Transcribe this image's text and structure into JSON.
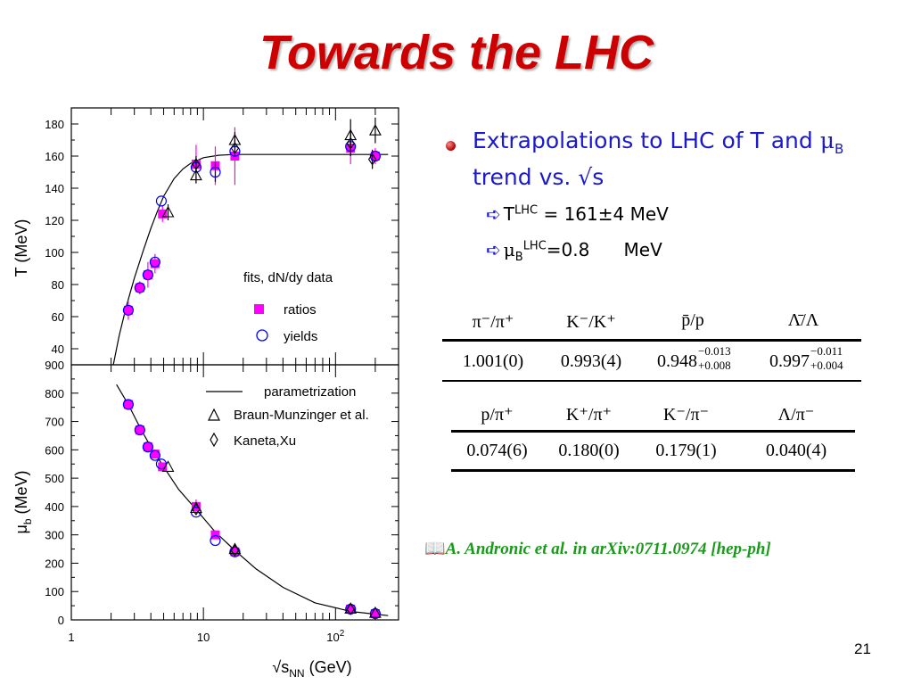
{
  "slide": {
    "title": "Towards the LHC",
    "page_number": "21",
    "bullet": {
      "text_parts": [
        "Extrapolations to LHC of T and ",
        "μ",
        "B",
        " trend vs. √s"
      ],
      "sub1": {
        "prefix": "T",
        "sup": "LHC",
        "value": " = 161±4 MeV"
      },
      "sub2": {
        "prefix": "μ",
        "sub": "B",
        "sup": "LHC",
        "value": "=0.8      MeV"
      }
    },
    "citation": "A. Andronic et al. in arXiv:0711.0974 [hep-ph]",
    "table1": {
      "headers": [
        "π⁻/π⁺",
        "K⁻/K⁺",
        "p̄/p",
        "Λ̄/Λ"
      ],
      "values": [
        "1.001(0)",
        "0.993(4)",
        "0.948",
        "0.997"
      ],
      "errors": [
        [
          "",
          ""
        ],
        [
          "",
          ""
        ],
        [
          "−0.013",
          "+0.008"
        ],
        [
          "−0.011",
          "+0.004"
        ]
      ]
    },
    "table2": {
      "headers": [
        "p/π⁺",
        "K⁺/π⁺",
        "K⁻/π⁻",
        "Λ/π⁻"
      ],
      "values": [
        "0.074(6)",
        "0.180(0)",
        "0.179(1)",
        "0.040(4)"
      ]
    }
  },
  "chart_data": [
    {
      "type": "scatter",
      "panel": "top",
      "ylabel": "T (MeV)",
      "x_scale": "log",
      "xlim": [
        1,
        300
      ],
      "ylim": [
        30,
        190
      ],
      "yticks": [
        40,
        60,
        80,
        100,
        120,
        140,
        160,
        180
      ],
      "legend_title": "fits, dN/dy data",
      "legend": [
        "ratios",
        "yields"
      ],
      "curve": {
        "name": "",
        "x": [
          2.08,
          2.3,
          2.6,
          3.0,
          3.5,
          4.0,
          4.5,
          5.0,
          6.0,
          7.0,
          8.0,
          10.0,
          13.0,
          17.0,
          30.0,
          100.0,
          250.0
        ],
        "y": [
          30,
          48,
          66,
          84,
          101,
          115,
          126,
          135,
          146,
          152,
          155.5,
          159,
          160.5,
          161,
          161,
          161,
          161
        ]
      },
      "series": [
        {
          "name": "ratios",
          "marker": "square",
          "color": "#ff00ff",
          "x": [
            2.7,
            3.3,
            3.8,
            4.3,
            4.9,
            8.8,
            12.3,
            17.3,
            130,
            200
          ],
          "y": [
            64,
            78,
            86,
            93,
            124,
            155,
            154,
            160,
            165,
            160
          ],
          "err": [
            6,
            4,
            8,
            6,
            5,
            12,
            12,
            18,
            10,
            5
          ]
        },
        {
          "name": "yields",
          "marker": "circle",
          "color": "#0000ff",
          "x": [
            2.7,
            3.3,
            3.8,
            4.3,
            4.8,
            8.8,
            12.3,
            17.3,
            130,
            200
          ],
          "y": [
            64,
            78,
            86,
            94,
            132,
            153,
            150,
            163,
            166,
            160
          ],
          "err": [
            0,
            0,
            0,
            0,
            0,
            0,
            6,
            0,
            0,
            0
          ]
        },
        {
          "name": "Braun-Munzinger et al.",
          "marker": "triangle",
          "color": "#000000",
          "x": [
            5.4,
            8.8,
            17.3,
            130,
            200
          ],
          "y": [
            125,
            148,
            170,
            173,
            176
          ],
          "err": [
            5,
            5,
            5,
            10,
            8
          ]
        },
        {
          "name": "Kaneta,Xu",
          "marker": "diamond",
          "color": "#000000",
          "x": [
            8.8,
            17.3,
            130,
            190
          ],
          "y": [
            155,
            165,
            168,
            158
          ],
          "err": [
            5,
            5,
            8,
            6
          ]
        }
      ]
    },
    {
      "type": "scatter",
      "panel": "bottom",
      "xlabel": "√sNN (GeV)",
      "ylabel": "μb (MeV)",
      "x_scale": "log",
      "xlim": [
        1,
        300
      ],
      "ylim": [
        0,
        900
      ],
      "xticks": [
        "1",
        "10",
        "10²"
      ],
      "yticks": [
        0,
        100,
        200,
        300,
        400,
        500,
        600,
        700,
        800,
        900
      ],
      "legend": [
        "parametrization",
        "Braun-Munzinger et al.",
        "Kaneta,Xu"
      ],
      "curve": {
        "name": "parametrization",
        "x": [
          2.2,
          2.7,
          3.3,
          4.0,
          5.0,
          6.5,
          8.8,
          12.3,
          17.3,
          25,
          40,
          70,
          130,
          250
        ],
        "y": [
          830,
          760,
          680,
          610,
          540,
          460,
          390,
          310,
          245,
          180,
          115,
          60,
          30,
          15
        ]
      },
      "series": [
        {
          "name": "ratios",
          "marker": "square",
          "color": "#ff00ff",
          "x": [
            2.7,
            3.3,
            3.8,
            4.3,
            4.9,
            8.8,
            12.3,
            17.3,
            130,
            200
          ],
          "y": [
            760,
            670,
            610,
            585,
            540,
            400,
            300,
            240,
            38,
            22
          ],
          "err": [
            15,
            15,
            15,
            15,
            15,
            25,
            15,
            15,
            5,
            5
          ]
        },
        {
          "name": "yields",
          "marker": "circle",
          "color": "#0000ff",
          "x": [
            2.7,
            3.3,
            3.8,
            4.3,
            4.8,
            8.8,
            12.3,
            17.3,
            130,
            200
          ],
          "y": [
            760,
            670,
            610,
            580,
            550,
            380,
            280,
            240,
            38,
            22
          ],
          "err": [
            0,
            0,
            0,
            0,
            0,
            0,
            0,
            0,
            0,
            0
          ]
        },
        {
          "name": "Braun-Munzinger et al.",
          "marker": "triangle",
          "color": "#000000",
          "x": [
            5.4,
            8.8,
            17.3,
            130,
            200
          ],
          "y": [
            540,
            395,
            250,
            40,
            25
          ],
          "err": [
            0,
            0,
            0,
            0,
            0
          ]
        },
        {
          "name": "Kaneta,Xu",
          "marker": "diamond",
          "color": "#000000",
          "x": [
            8.8,
            17.3,
            130
          ],
          "y": [
            390,
            245,
            38
          ],
          "err": [
            0,
            0,
            0
          ]
        }
      ]
    }
  ]
}
